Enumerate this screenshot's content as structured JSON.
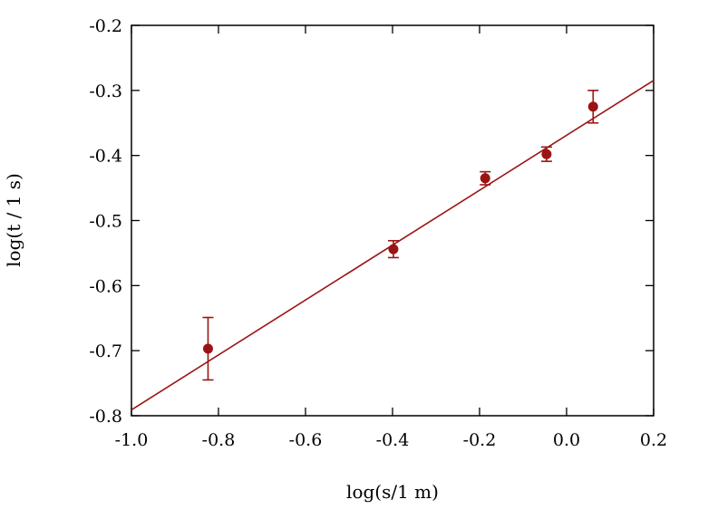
{
  "chart_data": {
    "type": "scatter",
    "xlabel": "log(s/1 m)",
    "ylabel": "log(t / 1 s)",
    "xlim": [
      -1.0,
      0.2
    ],
    "ylim": [
      -0.8,
      -0.2
    ],
    "xticks": [
      "-1.0",
      "-0.8",
      "-0.6",
      "-0.4",
      "-0.2",
      "0.0",
      "0.2"
    ],
    "yticks": [
      "-0.2",
      "-0.3",
      "-0.4",
      "-0.5",
      "-0.6",
      "-0.7",
      "-0.8"
    ],
    "grid": false,
    "color": "#9b1414",
    "points": [
      {
        "x": -0.824,
        "y": -0.697,
        "yerr": 0.048
      },
      {
        "x": -0.398,
        "y": -0.544,
        "yerr": 0.013
      },
      {
        "x": -0.187,
        "y": -0.435,
        "yerr": 0.01
      },
      {
        "x": -0.046,
        "y": -0.398,
        "yerr": 0.011
      },
      {
        "x": 0.061,
        "y": -0.325,
        "yerr": 0.025
      }
    ],
    "fit_line": {
      "slope": 0.422,
      "intercept": -0.369
    }
  }
}
